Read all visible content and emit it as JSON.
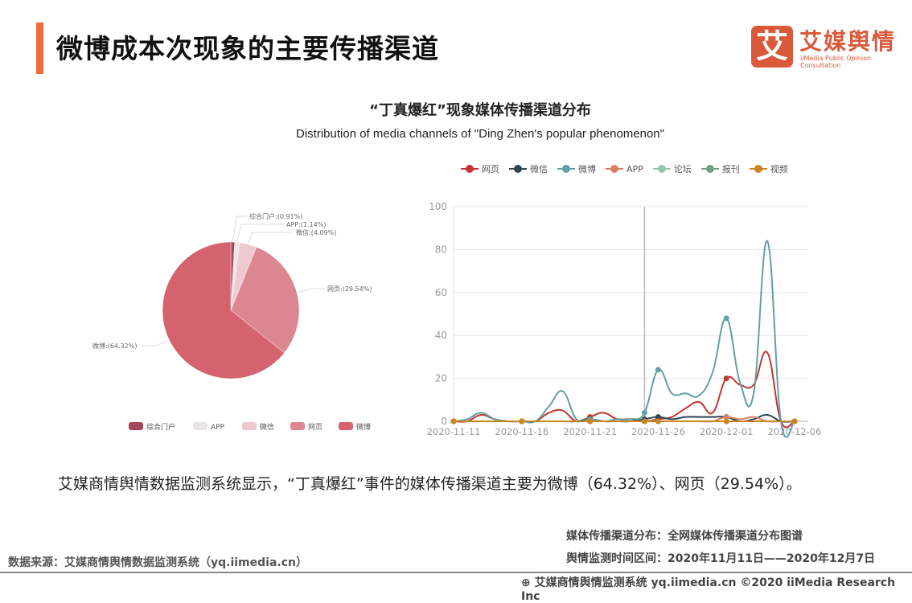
{
  "header": {
    "title": "微博成本次现象的主要传播渠道",
    "logo_cn": "艾媒舆情",
    "logo_en": "iiMedia Public Opinion Consultation",
    "logo_mark": "艾"
  },
  "chart_title": "“丁真爆红”现象媒体传播渠道分布",
  "chart_subtitle": "Distribution of media channels of \"Ding Zhen's popular phenomenon\"",
  "chart_data": [
    {
      "type": "pie",
      "slices": [
        {
          "name": "综合门户",
          "value": 0.91,
          "label": "综合门户:(0.91%)",
          "color": "#a5485c"
        },
        {
          "name": "APP",
          "value": 1.14,
          "label": "APP:(1.14%)",
          "color": "#ebe4e4"
        },
        {
          "name": "微信",
          "value": 4.09,
          "label": "微信:(4.09%)",
          "color": "#efc8d0"
        },
        {
          "name": "网页",
          "value": 29.54,
          "label": "网页:(29.54%)",
          "color": "#dc8790"
        },
        {
          "name": "微博",
          "value": 64.32,
          "label": "微博:(64.32%)",
          "color": "#d4636e"
        }
      ],
      "legend": "bottom"
    },
    {
      "type": "line",
      "ylim": [
        0,
        100
      ],
      "yticks": [
        0,
        20,
        40,
        60,
        80,
        100
      ],
      "xtick_labels": [
        "2020-11-11",
        "2020-11-16",
        "2020-11-21",
        "2020-11-26",
        "2020-12-01",
        "2020-12-06"
      ],
      "x": [
        "2020-11-11",
        "2020-11-12",
        "2020-11-13",
        "2020-11-14",
        "2020-11-15",
        "2020-11-16",
        "2020-11-17",
        "2020-11-18",
        "2020-11-19",
        "2020-11-20",
        "2020-11-21",
        "2020-11-22",
        "2020-11-23",
        "2020-11-24",
        "2020-11-25",
        "2020-11-26",
        "2020-11-27",
        "2020-11-28",
        "2020-11-29",
        "2020-11-30",
        "2020-12-01",
        "2020-12-02",
        "2020-12-03",
        "2020-12-04",
        "2020-12-05",
        "2020-12-06"
      ],
      "grid": true,
      "legend": "top",
      "highlight_x": "2020-11-25",
      "series": [
        {
          "name": "网页",
          "color": "#c23531",
          "values": [
            0,
            0,
            3,
            1,
            0,
            0,
            0,
            4,
            5,
            0,
            2,
            4,
            1,
            1,
            0,
            1,
            2,
            6,
            9,
            4,
            20,
            17,
            17,
            32,
            0,
            0
          ]
        },
        {
          "name": "微信",
          "color": "#2f4554",
          "values": [
            0,
            0,
            0,
            0,
            0,
            0,
            0,
            0,
            0,
            0,
            1,
            0,
            0,
            0,
            1,
            2,
            1,
            2,
            2,
            2,
            2,
            0,
            1,
            3,
            0,
            0
          ]
        },
        {
          "name": "微博",
          "color": "#61a0a8",
          "values": [
            0,
            1,
            4,
            1,
            0,
            0,
            0,
            7,
            14,
            1,
            1,
            0,
            1,
            1,
            4,
            24,
            13,
            13,
            12,
            23,
            48,
            18,
            13,
            84,
            0,
            0
          ]
        },
        {
          "name": "APP",
          "color": "#d48265",
          "values": [
            0,
            0,
            0,
            0,
            0,
            0,
            0,
            0,
            0,
            0,
            0,
            0,
            0,
            0,
            0,
            0,
            0,
            0,
            0,
            0,
            2,
            1,
            2,
            0,
            0,
            0
          ]
        },
        {
          "name": "论坛",
          "color": "#91c7ae",
          "values": [
            0,
            0,
            0,
            0,
            0,
            0,
            0,
            0,
            0,
            0,
            0,
            0,
            0,
            0,
            0,
            0,
            0,
            0,
            0,
            0,
            0,
            0,
            0,
            0,
            0,
            0
          ]
        },
        {
          "name": "报刊",
          "color": "#749f83",
          "values": [
            0,
            0,
            0,
            0,
            0,
            0,
            0,
            0,
            0,
            0,
            0,
            0,
            0,
            0,
            0,
            0,
            0,
            0,
            0,
            0,
            0,
            0,
            0,
            0,
            0,
            0
          ]
        },
        {
          "name": "视频",
          "color": "#ca8622",
          "values": [
            0,
            0,
            0,
            0,
            0,
            0,
            0,
            0,
            0,
            0,
            0,
            0,
            0,
            0,
            0,
            0,
            0,
            0,
            0,
            0,
            0,
            0,
            0,
            0,
            0,
            0
          ]
        }
      ]
    }
  ],
  "summary": "艾媒商情舆情数据监测系统显示，“丁真爆红”事件的媒体传播渠道主要为微博（64.32%）、网页（29.54%）。",
  "meta": {
    "distribution": "媒体传播渠道分布：全网媒体传播渠道分布图谱",
    "period": "舆情监测时间区间：2020年11月11日——2020年12月7日"
  },
  "source": "数据来源：艾媒商情舆情数据监测系统（yq.iimedia.cn）",
  "footer": "艾媒商情舆情监测系统 yq.iimedia.cn  ©2020  iiMedia Research  Inc"
}
